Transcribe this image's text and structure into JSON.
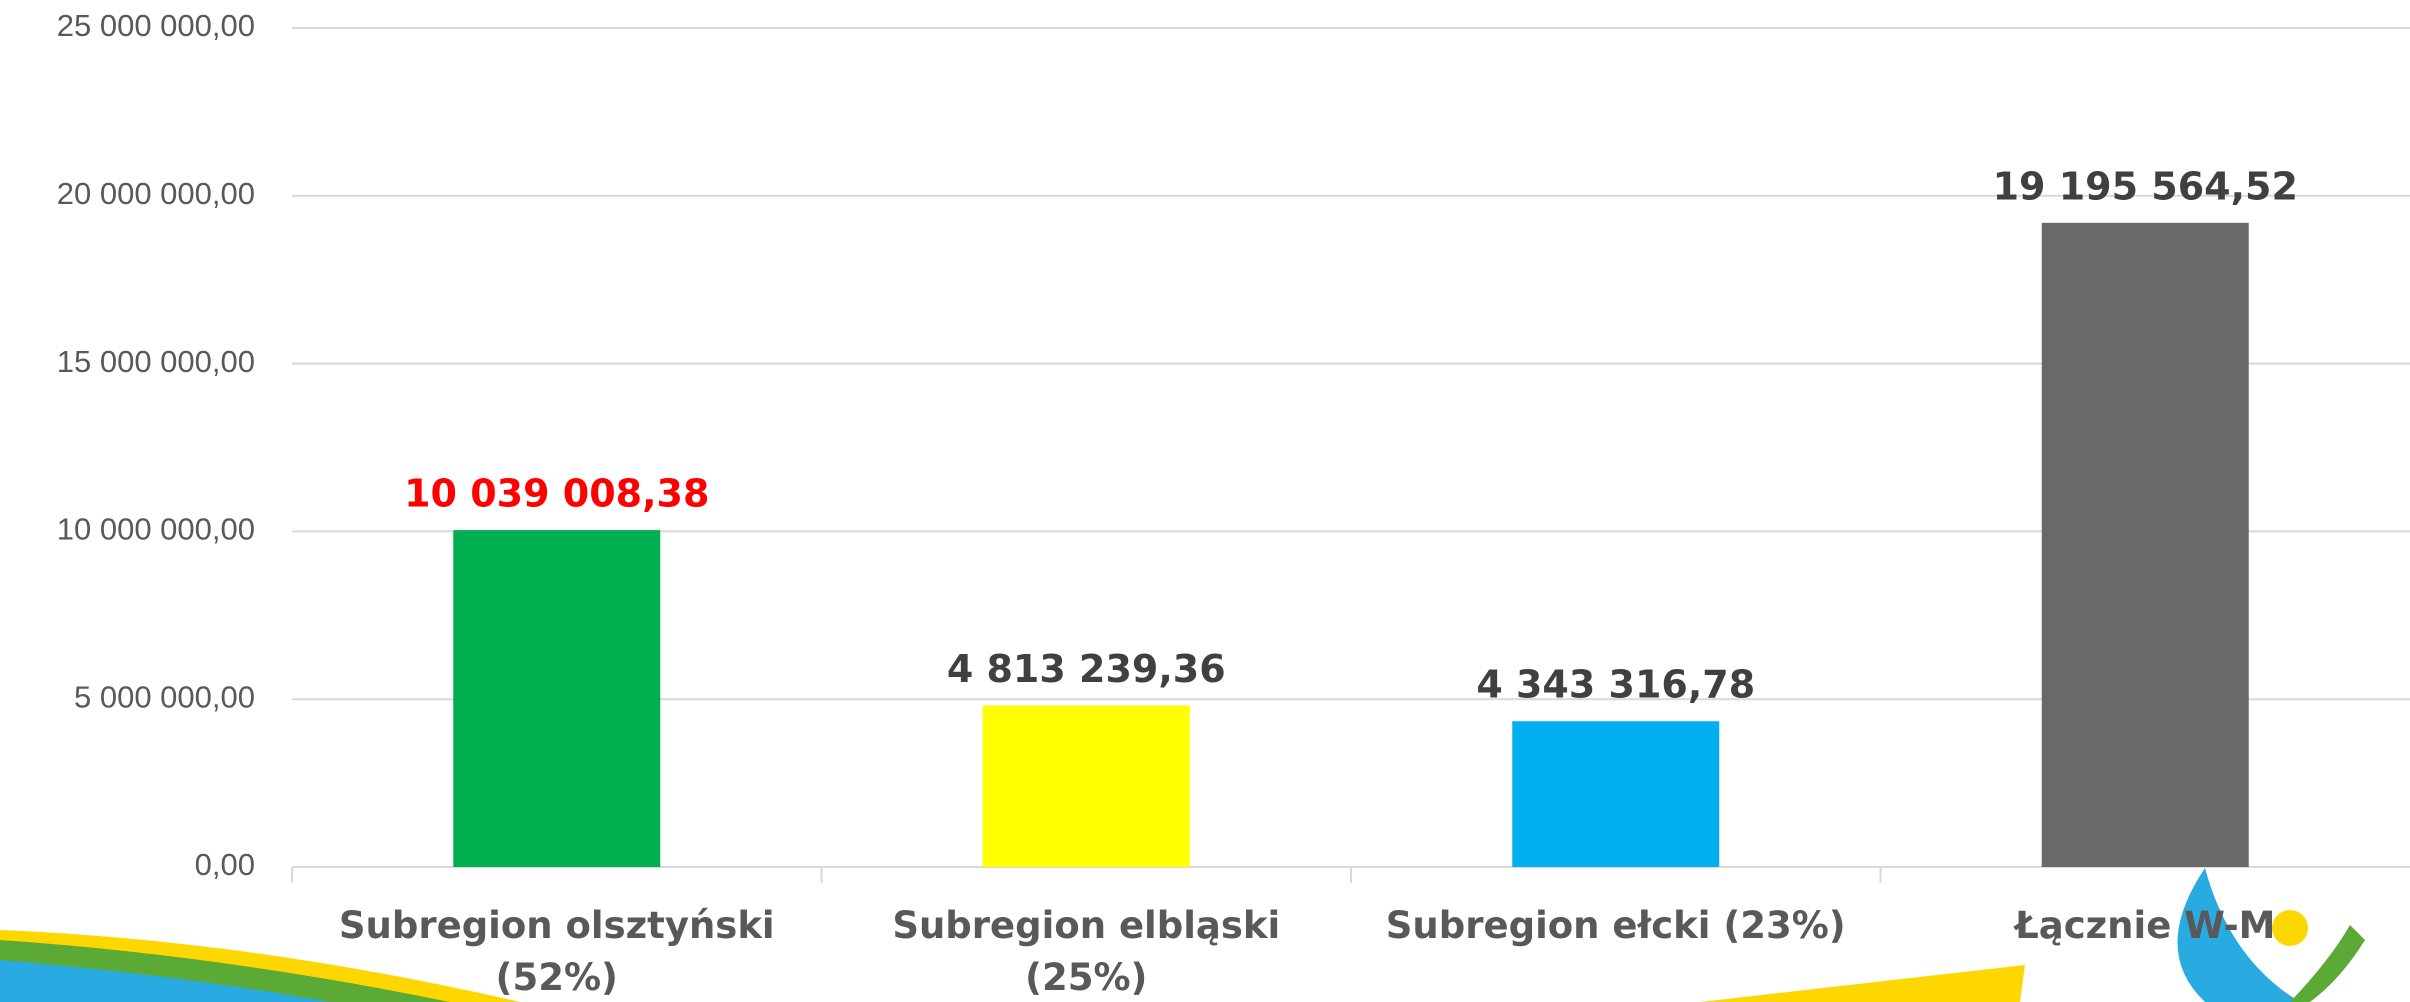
{
  "chart_data": {
    "type": "bar",
    "categories": [
      "Subregion olsztyński (52%)",
      "Subregion elbląski (25%)",
      "Subregion ełcki (23%)",
      "Łącznie W-M"
    ],
    "values": [
      10039008.38,
      4813239.36,
      4343316.78,
      19195564.52
    ],
    "value_labels": [
      "10 039 008,38",
      "4 813 239,36",
      "4 343 316,78",
      "19 195 564,52"
    ],
    "colors": [
      "#00b050",
      "#ffff00",
      "#00b0f0",
      "#696969"
    ],
    "value_label_colors": [
      "#ff0000",
      "#404040",
      "#404040",
      "#404040"
    ],
    "ylim": [
      0,
      25000000
    ],
    "yticks": [
      {
        "value": 0,
        "label": "0,00"
      },
      {
        "value": 5000000,
        "label": "5 000 000,00"
      },
      {
        "value": 10000000,
        "label": "10 000 000,00"
      },
      {
        "value": 15000000,
        "label": "15 000 000,00"
      },
      {
        "value": 20000000,
        "label": "20 000 000,00"
      },
      {
        "value": 25000000,
        "label": "25 000 000,00"
      }
    ],
    "grid": true
  }
}
